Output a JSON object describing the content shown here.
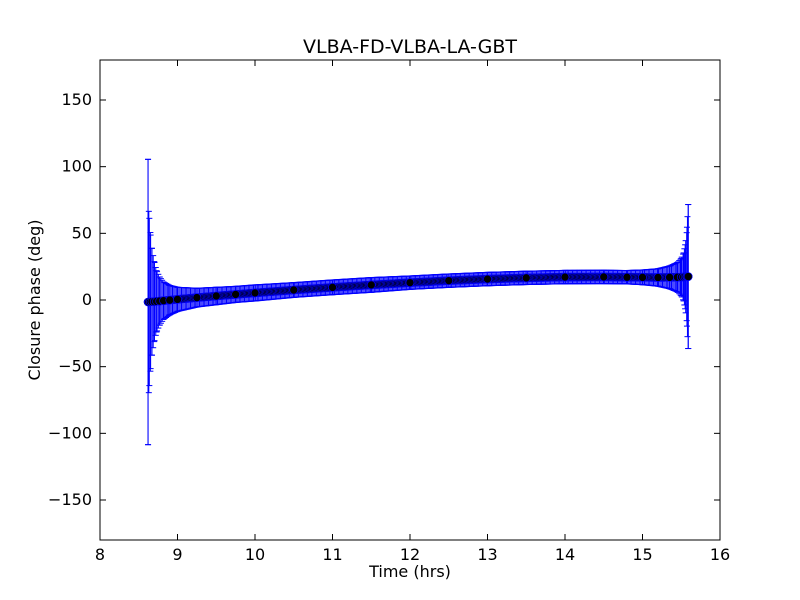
{
  "chart_data": {
    "type": "scatter",
    "title": "VLBA-FD-VLBA-LA-GBT",
    "xlabel": "Time (hrs)",
    "ylabel": "Closure phase (deg)",
    "xlim": [
      8,
      16
    ],
    "ylim": [
      -180,
      180
    ],
    "xticks": [
      8,
      9,
      10,
      11,
      12,
      13,
      14,
      15,
      16
    ],
    "yticks": [
      -150,
      -100,
      -50,
      0,
      50,
      100,
      150
    ],
    "xtick_labels": [
      "8",
      "9",
      "10",
      "11",
      "12",
      "13",
      "14",
      "15",
      "16"
    ],
    "ytick_labels": [
      "−150",
      "−100",
      "−50",
      "0",
      "50",
      "100",
      "150"
    ],
    "grid": false,
    "legend": "none",
    "series": [
      {
        "marker_color": "#000000",
        "errorbar_color": "#0000ff",
        "points": [
          {
            "x": 8.62,
            "y": -1.5,
            "err": 107
          },
          {
            "x": 8.63,
            "y": -1.5,
            "err": 68
          },
          {
            "x": 8.65,
            "y": -1.4,
            "err": 52
          },
          {
            "x": 8.67,
            "y": -1.3,
            "err": 40
          },
          {
            "x": 8.7,
            "y": -1.2,
            "err": 30
          },
          {
            "x": 8.73,
            "y": -1.0,
            "err": 23
          },
          {
            "x": 8.77,
            "y": -0.8,
            "err": 18
          },
          {
            "x": 8.82,
            "y": -0.5,
            "err": 14
          },
          {
            "x": 8.9,
            "y": -0.1,
            "err": 11
          },
          {
            "x": 9.0,
            "y": 0.5,
            "err": 9
          },
          {
            "x": 9.25,
            "y": 1.8,
            "err": 7
          },
          {
            "x": 9.5,
            "y": 3.0,
            "err": 6.5
          },
          {
            "x": 9.75,
            "y": 4.2,
            "err": 6
          },
          {
            "x": 10.0,
            "y": 5.3,
            "err": 6
          },
          {
            "x": 10.5,
            "y": 7.5,
            "err": 5.5
          },
          {
            "x": 11.0,
            "y": 9.5,
            "err": 5.5
          },
          {
            "x": 11.5,
            "y": 11.3,
            "err": 5.5
          },
          {
            "x": 12.0,
            "y": 13.0,
            "err": 5
          },
          {
            "x": 12.5,
            "y": 14.5,
            "err": 5
          },
          {
            "x": 13.0,
            "y": 15.7,
            "err": 5
          },
          {
            "x": 13.5,
            "y": 16.6,
            "err": 5
          },
          {
            "x": 14.0,
            "y": 17.2,
            "err": 5
          },
          {
            "x": 14.5,
            "y": 17.3,
            "err": 5
          },
          {
            "x": 14.8,
            "y": 17.1,
            "err": 5
          },
          {
            "x": 15.0,
            "y": 17.0,
            "err": 5.5
          },
          {
            "x": 15.2,
            "y": 16.9,
            "err": 6.5
          },
          {
            "x": 15.35,
            "y": 17.0,
            "err": 8.5
          },
          {
            "x": 15.45,
            "y": 17.1,
            "err": 11
          },
          {
            "x": 15.5,
            "y": 17.2,
            "err": 14
          },
          {
            "x": 15.53,
            "y": 17.3,
            "err": 18
          },
          {
            "x": 15.55,
            "y": 17.4,
            "err": 24
          },
          {
            "x": 15.57,
            "y": 17.5,
            "err": 33
          },
          {
            "x": 15.58,
            "y": 17.5,
            "err": 45
          },
          {
            "x": 15.59,
            "y": 17.6,
            "err": 54
          }
        ]
      }
    ]
  }
}
